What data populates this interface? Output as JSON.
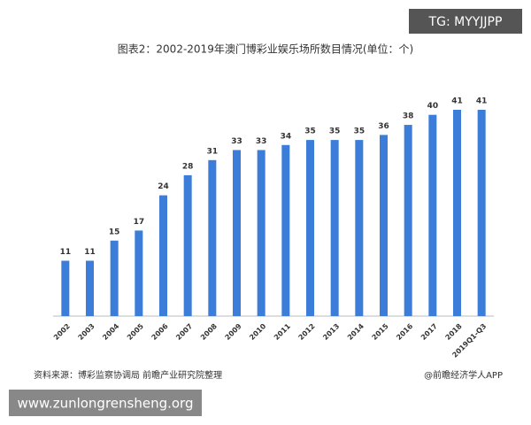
{
  "chart_data": {
    "type": "bar",
    "title": "图表2：2002-2019年澳门博彩业娱乐场所数目情况(单位：个)",
    "categories": [
      "2002",
      "2003",
      "2004",
      "2005",
      "2006",
      "2007",
      "2008",
      "2009",
      "2010",
      "2011",
      "2012",
      "2013",
      "2014",
      "2015",
      "2016",
      "2017",
      "2018",
      "2019Q1-Q3"
    ],
    "values": [
      11,
      11,
      15,
      17,
      24,
      28,
      31,
      33,
      33,
      34,
      35,
      35,
      35,
      36,
      38,
      40,
      41,
      41
    ],
    "color": "#3b7dd8",
    "source": "资料来源：博彩监察协调局 前瞻产业研究院整理",
    "credit": "@前瞻经济学人APP"
  },
  "overlay": {
    "tag": "TG: MYYJJPP",
    "site": "www.zunlongrensheng.org"
  }
}
